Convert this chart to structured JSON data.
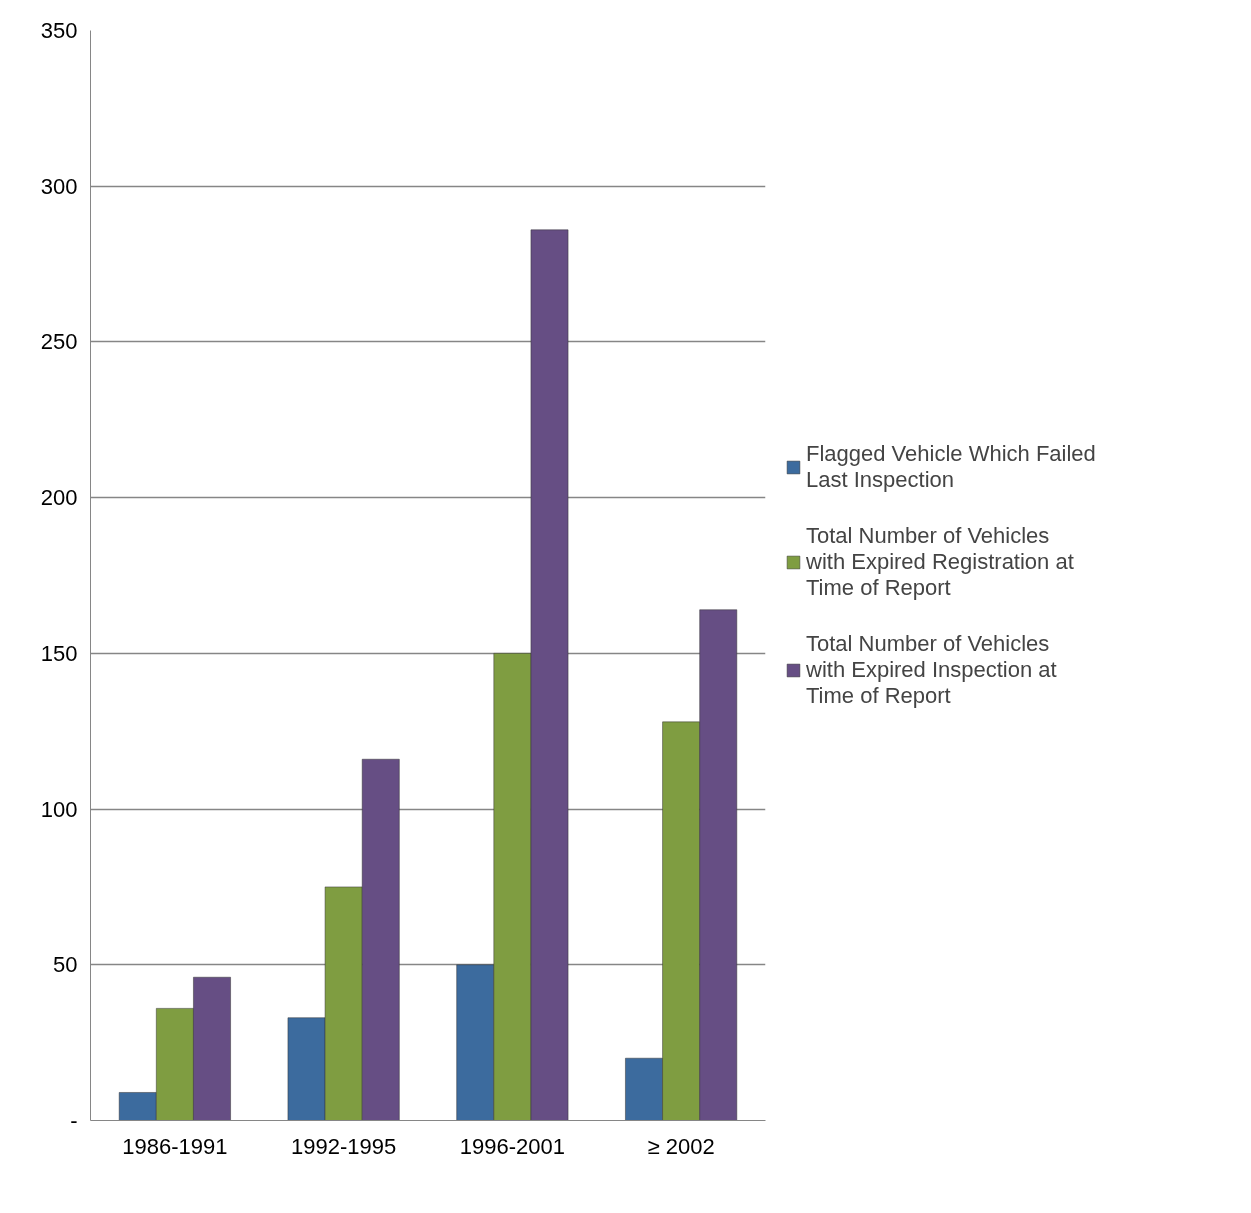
{
  "chart_data": {
    "type": "bar",
    "categories": [
      "1986-1991",
      "1992-1995",
      "1996-2001",
      "≥ 2002"
    ],
    "series": [
      {
        "name": "Flagged Vehicle Which Failed Last Inspection",
        "color": "#3c6b9e",
        "values": [
          9,
          33,
          50,
          20
        ]
      },
      {
        "name": "Total Number of Vehicles with Expired Registration at Time of Report",
        "color": "#7f9d41",
        "values": [
          36,
          75,
          150,
          128
        ]
      },
      {
        "name": "Total Number of Vehicles with Expired Inspection at Time of Report",
        "color": "#664e84",
        "values": [
          46,
          116,
          286,
          164
        ]
      }
    ],
    "ylim": [
      0,
      350
    ],
    "yticks": [
      {
        "value": 0,
        "label": "-"
      },
      50,
      100,
      150,
      200,
      250,
      300,
      350
    ],
    "grid": "y",
    "legend": "right"
  }
}
